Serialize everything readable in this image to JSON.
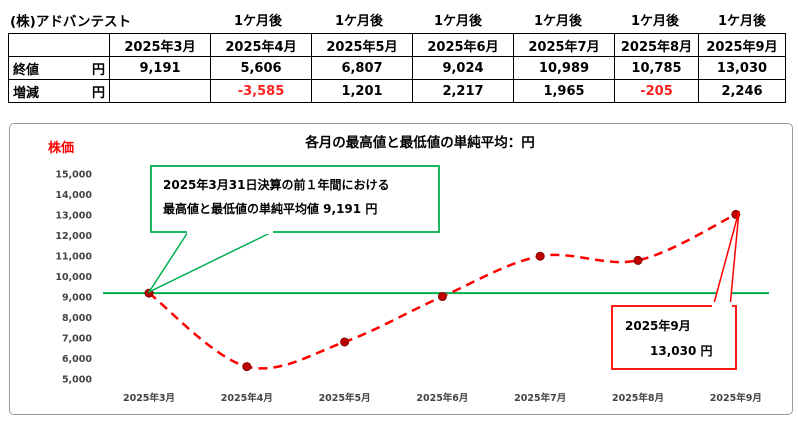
{
  "company_label": "(株)アドバンテスト",
  "table": {
    "one_month_label": "1ケ月後",
    "months": [
      "2025年3月",
      "2025年4月",
      "2025年5月",
      "2025年6月",
      "2025年7月",
      "2025年8月",
      "2025年9月"
    ],
    "rows": [
      {
        "label": "終値",
        "unit": "円",
        "cells": [
          "9,191",
          "5,606",
          "6,807",
          "9,024",
          "10,989",
          "10,785",
          "13,030"
        ]
      },
      {
        "label": "増減",
        "unit": "円",
        "cells": [
          "",
          "-3,585",
          "1,201",
          "2,217",
          "1,965",
          "-205",
          "2,246"
        ]
      }
    ]
  },
  "chart_data": {
    "type": "line",
    "title": "各月の最高値と最低値の単純平均：円",
    "ylabel": "株価",
    "categories": [
      "2025年3月",
      "2025年4月",
      "2025年5月",
      "2025年6月",
      "2025年7月",
      "2025年8月",
      "2025年9月"
    ],
    "series": [
      {
        "values": [
          9191,
          5606,
          6807,
          9024,
          10989,
          10785,
          13030
        ],
        "color": "#ff0000",
        "style": "dashed"
      }
    ],
    "reference_line": {
      "value": 9191,
      "color": "#00b050"
    },
    "ylim": [
      5000,
      15000
    ],
    "yticks": [
      5000,
      6000,
      7000,
      8000,
      9000,
      10000,
      11000,
      12000,
      13000,
      14000,
      15000
    ],
    "ytick_labels": [
      "5,000",
      "6,000",
      "7,000",
      "8,000",
      "9,000",
      "10,000",
      "11,000",
      "12,000",
      "13,000",
      "14,000",
      "15,000"
    ],
    "grid": false,
    "annotations": [
      {
        "lines": [
          "2025年3月31日決算の前１年間における",
          "最高値と最低値の単純平均値 9,191 円"
        ],
        "color": "#00b050",
        "target_index": 0
      },
      {
        "lines": [
          "2025年9月",
          "13,030 円"
        ],
        "color": "#ff0000",
        "target_index": 6
      }
    ]
  }
}
